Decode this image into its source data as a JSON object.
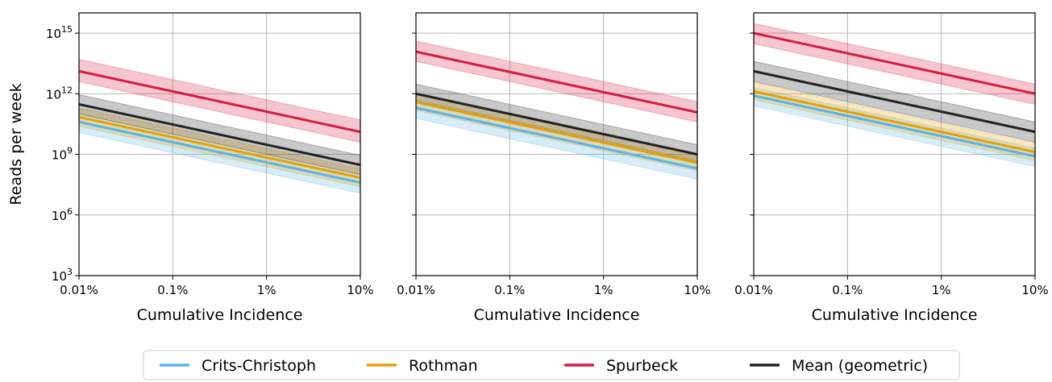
{
  "legend": {
    "placement": "bottom-center",
    "entries": [
      {
        "name": "Crits-Christoph",
        "color": "#56b4e9"
      },
      {
        "name": "Rothman",
        "color": "#e69f00"
      },
      {
        "name": "Spurbeck",
        "color": "#d81b45"
      },
      {
        "name": "Mean (geometric)",
        "color": "#222222"
      }
    ]
  },
  "chart_data": [
    {
      "type": "line",
      "xscale": "log",
      "yscale": "log",
      "grid": true,
      "xlabel": "Cumulative Incidence",
      "ylabel": "Reads per week",
      "xlim": [
        0.01,
        10
      ],
      "ylim": [
        1000,
        1e+16
      ],
      "x_ticks": [
        0.01,
        0.1,
        1,
        10
      ],
      "x_tick_labels": [
        "0.01%",
        "0.1%",
        "1%",
        "10%"
      ],
      "y_ticks": [
        1000,
        1000000,
        1000000000,
        1000000000000,
        1000000000000000
      ],
      "y_tick_labels": [
        {
          "base": "10",
          "exp": "3"
        },
        {
          "base": "10",
          "exp": "6"
        },
        {
          "base": "10",
          "exp": "9"
        },
        {
          "base": "10",
          "exp": "12"
        },
        {
          "base": "10",
          "exp": "15"
        }
      ],
      "x": [
        0.01,
        10
      ],
      "series": [
        {
          "name": "Crits-Christoph",
          "color": "#56b4e9",
          "values": [
            40000000000,
            40000000
          ],
          "lower": [
            12000000000,
            12000000
          ],
          "upper": [
            100000000000,
            100000000
          ]
        },
        {
          "name": "Rothman",
          "color": "#e69f00",
          "values": [
            70000000000,
            70000000
          ],
          "lower": [
            25000000000,
            25000000
          ],
          "upper": [
            200000000000,
            200000000
          ]
        },
        {
          "name": "Spurbeck",
          "color": "#d81b45",
          "values": [
            13000000000000,
            13000000000
          ],
          "lower": [
            4000000000000,
            4000000000
          ],
          "upper": [
            50000000000000,
            50000000000
          ]
        },
        {
          "name": "Mean (geometric)",
          "color": "#222222",
          "values": [
            300000000000,
            300000000
          ],
          "lower": [
            100000000000,
            100000000
          ],
          "upper": [
            900000000000,
            900000000
          ]
        }
      ]
    },
    {
      "type": "line",
      "xscale": "log",
      "yscale": "log",
      "grid": true,
      "xlabel": "Cumulative Incidence",
      "ylabel": "",
      "xlim": [
        0.01,
        10
      ],
      "ylim": [
        1000,
        1e+16
      ],
      "x_ticks": [
        0.01,
        0.1,
        1,
        10
      ],
      "x_tick_labels": [
        "0.01%",
        "0.1%",
        "1%",
        "10%"
      ],
      "y_ticks": [
        1000,
        1000000,
        1000000000,
        1000000000000,
        1000000000000000
      ],
      "y_tick_labels": [],
      "x": [
        0.01,
        10
      ],
      "series": [
        {
          "name": "Crits-Christoph",
          "color": "#56b4e9",
          "values": [
            200000000000,
            200000000
          ],
          "lower": [
            60000000000,
            60000000
          ],
          "upper": [
            500000000000,
            500000000
          ]
        },
        {
          "name": "Rothman",
          "color": "#e69f00",
          "values": [
            400000000000,
            400000000
          ],
          "lower": [
            150000000000,
            150000000
          ],
          "upper": [
            1000000000000,
            1000000000
          ]
        },
        {
          "name": "Spurbeck",
          "color": "#d81b45",
          "values": [
            120000000000000,
            120000000000
          ],
          "lower": [
            40000000000000,
            40000000000
          ],
          "upper": [
            400000000000000,
            400000000000
          ]
        },
        {
          "name": "Mean (geometric)",
          "color": "#222222",
          "values": [
            1000000000000,
            1000000000
          ],
          "lower": [
            350000000000,
            350000000
          ],
          "upper": [
            3000000000000,
            3000000000
          ]
        }
      ]
    },
    {
      "type": "line",
      "xscale": "log",
      "yscale": "log",
      "grid": true,
      "xlabel": "Cumulative Incidence",
      "ylabel": "",
      "xlim": [
        0.01,
        10
      ],
      "ylim": [
        1000,
        1e+16
      ],
      "x_ticks": [
        0.01,
        0.1,
        1,
        10
      ],
      "x_tick_labels": [
        "0.01%",
        "0.1%",
        "1%",
        "10%"
      ],
      "y_ticks": [
        1000,
        1000000,
        1000000000,
        1000000000000,
        1000000000000000
      ],
      "y_tick_labels": [],
      "x": [
        0.01,
        10
      ],
      "series": [
        {
          "name": "Crits-Christoph",
          "color": "#56b4e9",
          "values": [
            800000000000,
            800000000
          ],
          "lower": [
            250000000000,
            250000000
          ],
          "upper": [
            2000000000000,
            2000000000
          ]
        },
        {
          "name": "Rothman",
          "color": "#e69f00",
          "values": [
            1300000000000,
            1300000000
          ],
          "lower": [
            500000000000,
            500000000
          ],
          "upper": [
            3500000000000,
            3500000000
          ]
        },
        {
          "name": "Spurbeck",
          "color": "#d81b45",
          "values": [
            1000000000000000,
            1000000000000
          ],
          "lower": [
            300000000000000,
            300000000000
          ],
          "upper": [
            3000000000000000,
            3000000000000
          ]
        },
        {
          "name": "Mean (geometric)",
          "color": "#222222",
          "values": [
            13000000000000,
            13000000000
          ],
          "lower": [
            4000000000000,
            4000000000
          ],
          "upper": [
            40000000000000,
            40000000000
          ]
        }
      ]
    }
  ]
}
